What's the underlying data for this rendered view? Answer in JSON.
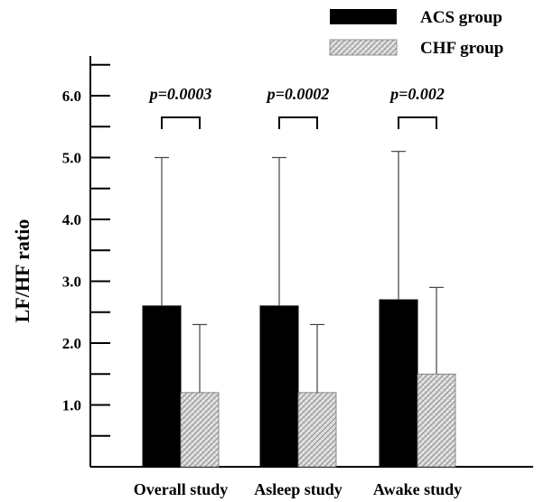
{
  "chart_data": {
    "type": "bar",
    "categories": [
      "Overall study",
      "Asleep study",
      "Awake study"
    ],
    "series": [
      {
        "name": "ACS group",
        "values": [
          2.6,
          2.6,
          2.7
        ],
        "error_upper": [
          5.0,
          5.0,
          5.1
        ],
        "pattern": "solid",
        "color": "#000000"
      },
      {
        "name": "CHF group",
        "values": [
          1.2,
          1.2,
          1.5
        ],
        "error_upper": [
          2.3,
          2.3,
          2.9
        ],
        "pattern": "crosshatch",
        "color": "#9a9a9a"
      }
    ],
    "ylabel": "LF/HF ratio",
    "xlabel": "",
    "ylim": [
      0,
      6.5
    ],
    "y_ticks": [
      "1.0",
      "2.0",
      "3.0",
      "4.0",
      "5.0",
      "6.0"
    ],
    "annotations": [
      "p=0.0003",
      "p=0.0002",
      "p=0.002"
    ],
    "legend_position": "top-right",
    "grid": false
  }
}
